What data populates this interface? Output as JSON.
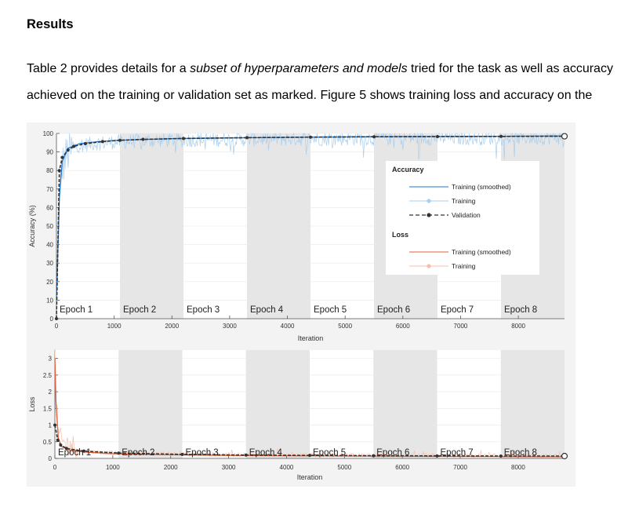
{
  "heading": "Results",
  "paragraph": {
    "line1_prefix": "Table 2 provides details for a ",
    "line1_italic": "subset of hyperparameters and models",
    "line1_suffix": " tried for the task as well as accuracy",
    "line2": "achieved on the training or validation set as marked. Figure 5 shows training loss and accuracy on the"
  },
  "colors": {
    "training_smoothed_acc": "#1f77d4",
    "training_acc": "#a9cfee",
    "validation": "#333333",
    "training_smoothed_loss": "#e5603a",
    "training_loss": "#f6bfa9",
    "epoch_shade": "#e6e6e6"
  },
  "chart_data": [
    {
      "type": "line",
      "ylabel": "Accuracy (%)",
      "xlabel": "Iteration",
      "xlim": [
        0,
        8800
      ],
      "ylim": [
        0,
        100
      ],
      "xticks": [
        0,
        1000,
        2000,
        3000,
        4000,
        5000,
        6000,
        7000,
        8000
      ],
      "yticks": [
        0,
        10,
        20,
        30,
        40,
        50,
        60,
        70,
        80,
        90,
        100
      ],
      "epochs": [
        "Epoch 1",
        "Epoch 2",
        "Epoch 3",
        "Epoch 4",
        "Epoch 5",
        "Epoch 6",
        "Epoch 7",
        "Epoch 8"
      ],
      "epoch_boundaries": [
        0,
        1100,
        2200,
        3300,
        4400,
        5500,
        6600,
        7700,
        8800
      ],
      "legend": {
        "acc_title": "Accuracy",
        "acc_items": [
          "Training (smoothed)",
          "Training",
          "Validation"
        ],
        "loss_title": "Loss",
        "loss_items": [
          "Training (smoothed)",
          "Training"
        ]
      },
      "series": [
        {
          "name": "Training (smoothed)",
          "x": [
            0,
            50,
            100,
            200,
            400,
            700,
            1000,
            1500,
            2000,
            3000,
            4000,
            5000,
            6000,
            7000,
            8000,
            8800
          ],
          "y": [
            10,
            65,
            85,
            92,
            94.5,
            95.5,
            96.2,
            96.8,
            97.2,
            97.6,
            97.9,
            98.1,
            98.3,
            98.4,
            98.5,
            98.6
          ]
        },
        {
          "name": "Validation",
          "x": [
            0,
            50,
            100,
            200,
            300,
            500,
            800,
            1100,
            1500,
            2200,
            3300,
            4400,
            5500,
            6600,
            7700,
            8800
          ],
          "y": [
            0,
            80,
            87,
            91,
            93,
            94.5,
            95.6,
            96.3,
            96.8,
            97.3,
            97.7,
            98.0,
            98.2,
            98.3,
            98.4,
            98.5
          ]
        }
      ]
    },
    {
      "type": "line",
      "ylabel": "Loss",
      "xlabel": "Iteration",
      "xlim": [
        0,
        8800
      ],
      "ylim": [
        0,
        3.25
      ],
      "xticks": [
        0,
        1000,
        2000,
        3000,
        4000,
        5000,
        6000,
        7000,
        8000
      ],
      "yticks": [
        0,
        0.5,
        1,
        1.5,
        2,
        2.5,
        3
      ],
      "epochs": [
        "Epoch 1",
        "Epoch 2",
        "Epoch 3",
        "Epoch 4",
        "Epoch 5",
        "Epoch 6",
        "Epoch 7",
        "Epoch 8"
      ],
      "epoch_boundaries": [
        0,
        1100,
        2200,
        3300,
        4400,
        5500,
        6600,
        7700,
        8800
      ],
      "series": [
        {
          "name": "Training (smoothed)",
          "x": [
            0,
            20,
            60,
            120,
            250,
            500,
            1000,
            2000,
            3000,
            4000,
            5000,
            6000,
            7000,
            8000,
            8800
          ],
          "y": [
            3.0,
            1.6,
            0.6,
            0.35,
            0.25,
            0.19,
            0.14,
            0.11,
            0.09,
            0.08,
            0.07,
            0.065,
            0.06,
            0.055,
            0.05
          ]
        },
        {
          "name": "Validation",
          "x": [
            0,
            50,
            100,
            200,
            500,
            1100,
            2200,
            3300,
            4400,
            5500,
            6600,
            7700,
            8800
          ],
          "y": [
            1.0,
            0.55,
            0.4,
            0.3,
            0.22,
            0.16,
            0.12,
            0.1,
            0.09,
            0.08,
            0.075,
            0.07,
            0.07
          ]
        }
      ]
    }
  ]
}
